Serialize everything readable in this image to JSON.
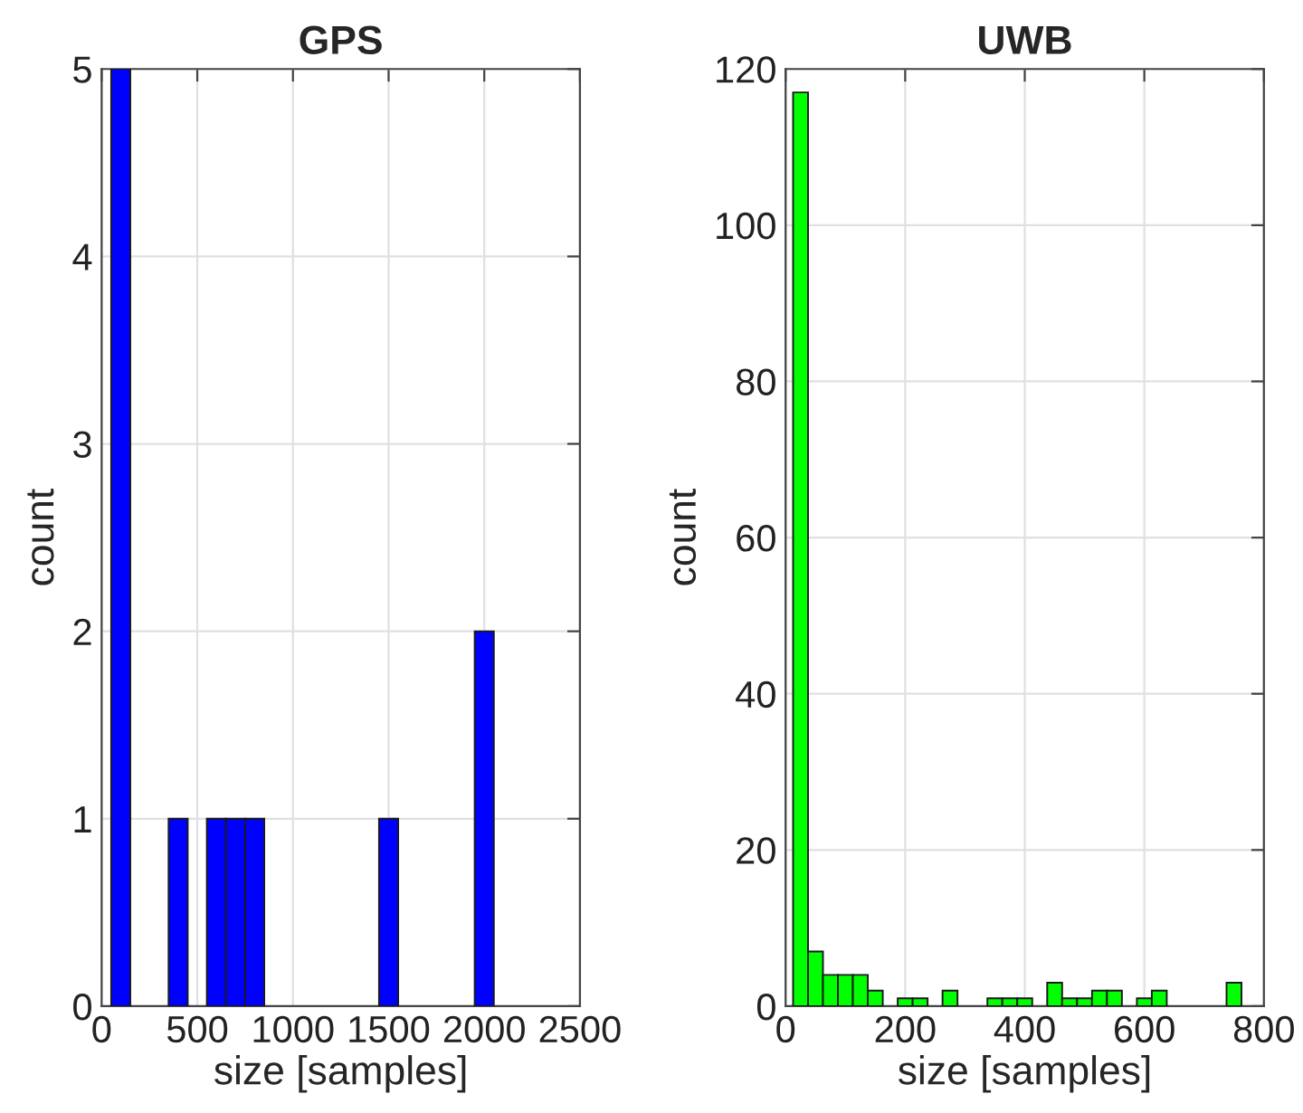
{
  "chart_data": [
    {
      "type": "histogram",
      "title": "GPS",
      "xlabel": "size [samples]",
      "ylabel": "count",
      "color": "#0000ff",
      "bins": [
        50,
        150,
        250,
        350,
        450,
        550,
        650,
        750,
        850,
        950,
        1050,
        1150,
        1250,
        1350,
        1450,
        1550,
        1650,
        1750,
        1850,
        1950,
        2050
      ],
      "values": [
        5,
        0,
        0,
        1,
        0,
        1,
        1,
        1,
        0,
        0,
        0,
        0,
        0,
        0,
        1,
        0,
        0,
        0,
        0,
        2
      ],
      "xlim": [
        0,
        2500
      ],
      "xticks": [
        0,
        500,
        1000,
        1500,
        2000,
        2500
      ],
      "ylim": [
        0,
        5
      ],
      "yticks": [
        0,
        1,
        2,
        3,
        4,
        5
      ],
      "grid": true
    },
    {
      "type": "histogram",
      "title": "UWB",
      "xlabel": "size [samples]",
      "ylabel": "count",
      "color": "#00ff00",
      "bins": [
        12.5,
        37.5,
        62.5,
        87.5,
        112.5,
        137.5,
        162.5,
        187.5,
        212.5,
        237.5,
        262.5,
        287.5,
        312.5,
        337.5,
        362.5,
        387.5,
        412.5,
        437.5,
        462.5,
        487.5,
        512.5,
        537.5,
        562.5,
        587.5,
        612.5,
        637.5,
        662.5,
        687.5,
        712.5,
        737.5,
        762.5
      ],
      "values": [
        117,
        7,
        4,
        4,
        4,
        2,
        0,
        1,
        1,
        0,
        2,
        0,
        0,
        1,
        1,
        1,
        0,
        3,
        1,
        1,
        2,
        2,
        0,
        1,
        2,
        0,
        0,
        0,
        0,
        3
      ],
      "xlim": [
        0,
        800
      ],
      "xticks": [
        0,
        200,
        400,
        600,
        800
      ],
      "ylim": [
        0,
        120
      ],
      "yticks": [
        0,
        20,
        40,
        60,
        80,
        100,
        120
      ],
      "grid": true
    }
  ]
}
